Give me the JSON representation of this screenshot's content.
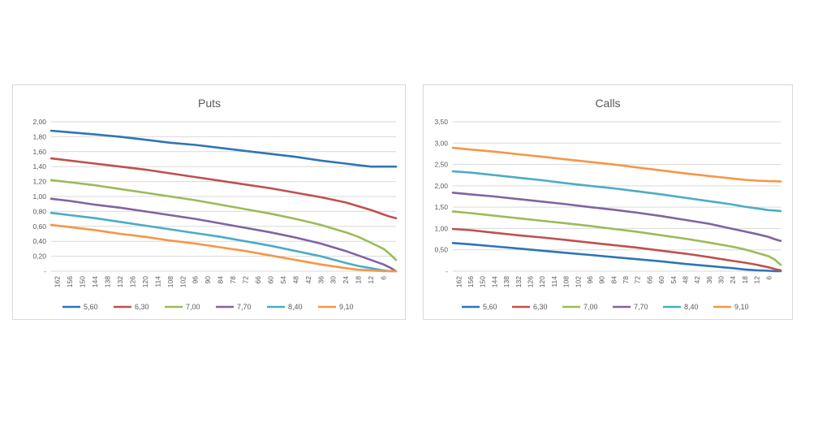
{
  "chart_data": [
    {
      "type": "line",
      "title": "Puts",
      "ylim": [
        0,
        2.0
      ],
      "ytick_values": [
        0,
        0.2,
        0.4,
        0.6,
        0.8,
        1.0,
        1.2,
        1.4,
        1.6,
        1.8,
        2.0
      ],
      "ytick_labels": [
        "-",
        "0,20",
        "0,40",
        "0,60",
        "0,80",
        "1,00",
        "1,20",
        "1,40",
        "1,60",
        "1,80",
        "2,00"
      ],
      "x_range": [
        165,
        0
      ],
      "xtick_labels": [
        "162",
        "156",
        "150",
        "144",
        "138",
        "132",
        "126",
        "120",
        "114",
        "108",
        "102",
        "96",
        "90",
        "84",
        "78",
        "72",
        "66",
        "60",
        "54",
        "48",
        "42",
        "36",
        "30",
        "24",
        "18",
        "12",
        "6"
      ],
      "xtick_values": [
        162,
        156,
        150,
        144,
        138,
        132,
        126,
        120,
        114,
        108,
        102,
        96,
        90,
        84,
        78,
        72,
        66,
        60,
        54,
        48,
        42,
        36,
        30,
        24,
        18,
        12,
        6
      ],
      "grid": true,
      "legend_position": "bottom",
      "x": [
        165,
        156,
        144,
        132,
        120,
        108,
        96,
        84,
        72,
        60,
        48,
        36,
        24,
        18,
        12,
        6,
        3,
        0
      ],
      "series": [
        {
          "name": "5,60",
          "color": "#2e75b6",
          "values": [
            1.88,
            1.86,
            1.83,
            1.8,
            1.76,
            1.72,
            1.69,
            1.65,
            1.61,
            1.57,
            1.53,
            1.48,
            1.44,
            1.42,
            1.4,
            1.4,
            1.4,
            1.4
          ]
        },
        {
          "name": "6,30",
          "color": "#c0504d",
          "values": [
            1.51,
            1.48,
            1.44,
            1.4,
            1.36,
            1.31,
            1.26,
            1.21,
            1.16,
            1.11,
            1.05,
            0.99,
            0.92,
            0.87,
            0.82,
            0.76,
            0.73,
            0.71
          ]
        },
        {
          "name": "7,00",
          "color": "#9bbb59",
          "values": [
            1.22,
            1.19,
            1.15,
            1.1,
            1.05,
            1.0,
            0.95,
            0.89,
            0.83,
            0.77,
            0.7,
            0.62,
            0.52,
            0.46,
            0.38,
            0.3,
            0.23,
            0.15
          ]
        },
        {
          "name": "7,70",
          "color": "#8064a2",
          "values": [
            0.97,
            0.94,
            0.89,
            0.85,
            0.8,
            0.75,
            0.7,
            0.64,
            0.58,
            0.52,
            0.45,
            0.37,
            0.27,
            0.21,
            0.15,
            0.09,
            0.05,
            0.0
          ]
        },
        {
          "name": "8,40",
          "color": "#4bacc6",
          "values": [
            0.78,
            0.75,
            0.71,
            0.66,
            0.61,
            0.56,
            0.51,
            0.46,
            0.4,
            0.34,
            0.27,
            0.2,
            0.11,
            0.07,
            0.04,
            0.01,
            0.0,
            0.0
          ]
        },
        {
          "name": "9,10",
          "color": "#f79646",
          "values": [
            0.62,
            0.59,
            0.55,
            0.5,
            0.46,
            0.41,
            0.37,
            0.32,
            0.27,
            0.21,
            0.15,
            0.09,
            0.04,
            0.02,
            0.01,
            0.0,
            0.0,
            0.0
          ]
        }
      ]
    },
    {
      "type": "line",
      "title": "Calls",
      "ylim": [
        0,
        3.5
      ],
      "ytick_values": [
        0,
        0.5,
        1.0,
        1.5,
        2.0,
        2.5,
        3.0,
        3.5
      ],
      "ytick_labels": [
        "-",
        "0,50",
        "1,00",
        "1,50",
        "2,00",
        "2,50",
        "3,00",
        "3,50"
      ],
      "x_range": [
        165,
        0
      ],
      "xtick_labels": [
        "162",
        "156",
        "150",
        "144",
        "138",
        "132",
        "126",
        "120",
        "114",
        "108",
        "102",
        "96",
        "90",
        "84",
        "78",
        "72",
        "66",
        "60",
        "54",
        "48",
        "42",
        "36",
        "30",
        "24",
        "18",
        "12",
        "6"
      ],
      "xtick_values": [
        162,
        156,
        150,
        144,
        138,
        132,
        126,
        120,
        114,
        108,
        102,
        96,
        90,
        84,
        78,
        72,
        66,
        60,
        54,
        48,
        42,
        36,
        30,
        24,
        18,
        12,
        6
      ],
      "grid": true,
      "legend_position": "bottom",
      "x": [
        165,
        156,
        144,
        132,
        120,
        108,
        96,
        84,
        72,
        60,
        48,
        36,
        24,
        18,
        12,
        6,
        3,
        0
      ],
      "series": [
        {
          "name": "5,60",
          "color": "#2e75b6",
          "values": [
            0.66,
            0.63,
            0.58,
            0.53,
            0.48,
            0.43,
            0.38,
            0.33,
            0.28,
            0.23,
            0.17,
            0.12,
            0.07,
            0.04,
            0.02,
            0.01,
            0.0,
            0.0
          ]
        },
        {
          "name": "6,30",
          "color": "#c0504d",
          "values": [
            0.99,
            0.96,
            0.9,
            0.84,
            0.79,
            0.73,
            0.67,
            0.61,
            0.55,
            0.48,
            0.41,
            0.33,
            0.24,
            0.2,
            0.15,
            0.09,
            0.05,
            0.02
          ]
        },
        {
          "name": "7,00",
          "color": "#9bbb59",
          "values": [
            1.4,
            1.36,
            1.3,
            1.24,
            1.18,
            1.12,
            1.06,
            0.99,
            0.92,
            0.84,
            0.76,
            0.67,
            0.57,
            0.51,
            0.43,
            0.35,
            0.27,
            0.15
          ]
        },
        {
          "name": "7,70",
          "color": "#8064a2",
          "values": [
            1.84,
            1.8,
            1.75,
            1.69,
            1.63,
            1.57,
            1.5,
            1.44,
            1.37,
            1.29,
            1.2,
            1.11,
            0.99,
            0.93,
            0.87,
            0.8,
            0.75,
            0.71
          ]
        },
        {
          "name": "8,40",
          "color": "#4bacc6",
          "values": [
            2.34,
            2.31,
            2.25,
            2.19,
            2.13,
            2.06,
            2.0,
            1.94,
            1.87,
            1.8,
            1.72,
            1.64,
            1.56,
            1.51,
            1.47,
            1.43,
            1.42,
            1.41
          ]
        },
        {
          "name": "9,10",
          "color": "#f79646",
          "values": [
            2.89,
            2.85,
            2.8,
            2.74,
            2.68,
            2.62,
            2.56,
            2.5,
            2.43,
            2.36,
            2.29,
            2.23,
            2.17,
            2.14,
            2.12,
            2.11,
            2.11,
            2.1
          ]
        }
      ]
    }
  ]
}
